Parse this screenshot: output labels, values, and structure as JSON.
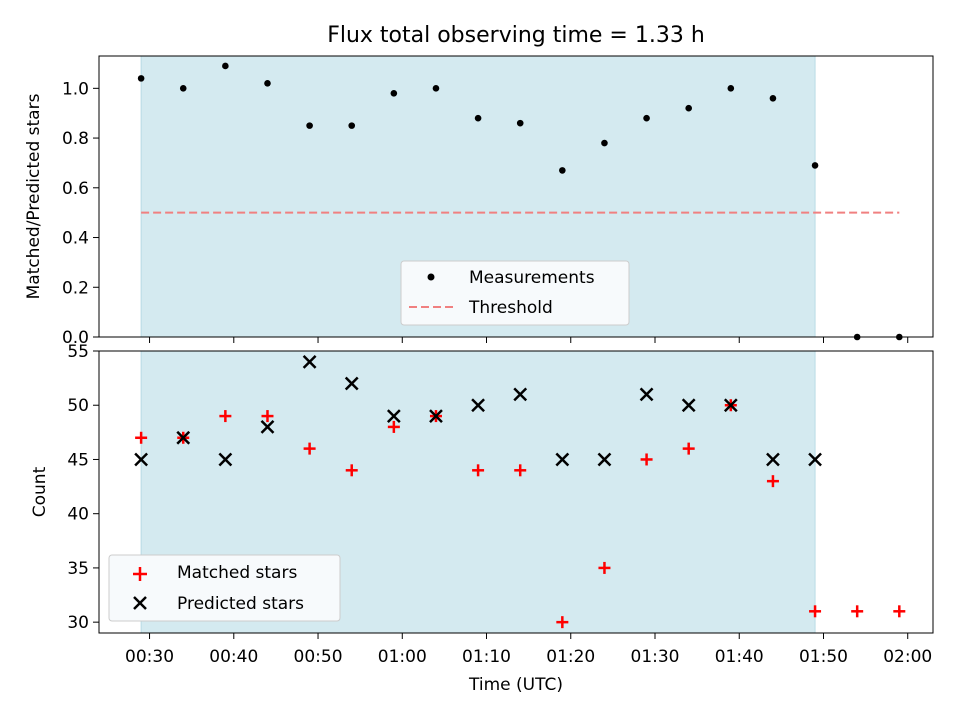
{
  "figure_title": "Flux total observing time = 1.33 h",
  "colors": {
    "shade": "#d4eaf0",
    "measurement": "#000000",
    "threshold": "#f08080",
    "matched": "#ff0000",
    "predicted": "#000000"
  },
  "chart_data": [
    {
      "type": "scatter",
      "title": "Flux total observing time = 1.33 h",
      "xlabel": "",
      "ylabel": "Matched/Predicted stars",
      "ylim": [
        0.0,
        1.13
      ],
      "yticks": [
        0.0,
        0.2,
        0.4,
        0.6,
        0.8,
        1.0
      ],
      "ytick_labels": [
        "0.0",
        "0.2",
        "0.4",
        "0.6",
        "0.8",
        "1.0"
      ],
      "shaded_span": [
        "00:29",
        "01:49"
      ],
      "legend_location": "lower center",
      "series": [
        {
          "name": "Measurements",
          "marker": "dot",
          "x": [
            "00:29",
            "00:34",
            "00:39",
            "00:44",
            "00:49",
            "00:54",
            "00:59",
            "01:04",
            "01:09",
            "01:14",
            "01:19",
            "01:24",
            "01:29",
            "01:34",
            "01:39",
            "01:44",
            "01:49",
            "01:54",
            "01:59"
          ],
          "y": [
            1.04,
            1.0,
            1.09,
            1.02,
            0.85,
            0.85,
            0.98,
            1.0,
            0.88,
            0.86,
            0.67,
            0.78,
            0.88,
            0.92,
            1.0,
            0.96,
            0.69,
            0.0,
            0.0
          ]
        },
        {
          "name": "Threshold",
          "marker": "dashed-line",
          "x": [
            "00:29",
            "01:59"
          ],
          "y": [
            0.5,
            0.5
          ]
        }
      ]
    },
    {
      "type": "scatter",
      "xlabel": "Time (UTC)",
      "ylabel": "Count",
      "ylim": [
        29,
        55
      ],
      "yticks": [
        30,
        35,
        40,
        45,
        50,
        55
      ],
      "ytick_labels": [
        "30",
        "35",
        "40",
        "45",
        "50",
        "55"
      ],
      "x_range": [
        "00:24",
        "02:03"
      ],
      "xticks": [
        "00:30",
        "00:40",
        "00:50",
        "01:00",
        "01:10",
        "01:20",
        "01:30",
        "01:40",
        "01:50",
        "02:00"
      ],
      "shaded_span": [
        "00:29",
        "01:49"
      ],
      "legend_location": "lower left",
      "series": [
        {
          "name": "Matched stars",
          "marker": "plus",
          "x": [
            "00:29",
            "00:34",
            "00:39",
            "00:44",
            "00:49",
            "00:54",
            "00:59",
            "01:04",
            "01:09",
            "01:14",
            "01:19",
            "01:24",
            "01:29",
            "01:34",
            "01:39",
            "01:44",
            "01:49",
            "01:54",
            "01:59"
          ],
          "y": [
            47,
            47,
            49,
            49,
            46,
            44,
            48,
            49,
            44,
            44,
            30,
            35,
            45,
            46,
            50,
            43,
            31,
            31,
            31
          ]
        },
        {
          "name": "Predicted stars",
          "marker": "x",
          "x": [
            "00:29",
            "00:34",
            "00:39",
            "00:44",
            "00:49",
            "00:54",
            "00:59",
            "01:04",
            "01:09",
            "01:14",
            "01:19",
            "01:24",
            "01:29",
            "01:34",
            "01:39",
            "01:44",
            "01:49"
          ],
          "y": [
            45,
            47,
            45,
            48,
            54,
            52,
            49,
            49,
            50,
            51,
            45,
            45,
            51,
            50,
            50,
            45,
            45
          ]
        }
      ]
    }
  ]
}
